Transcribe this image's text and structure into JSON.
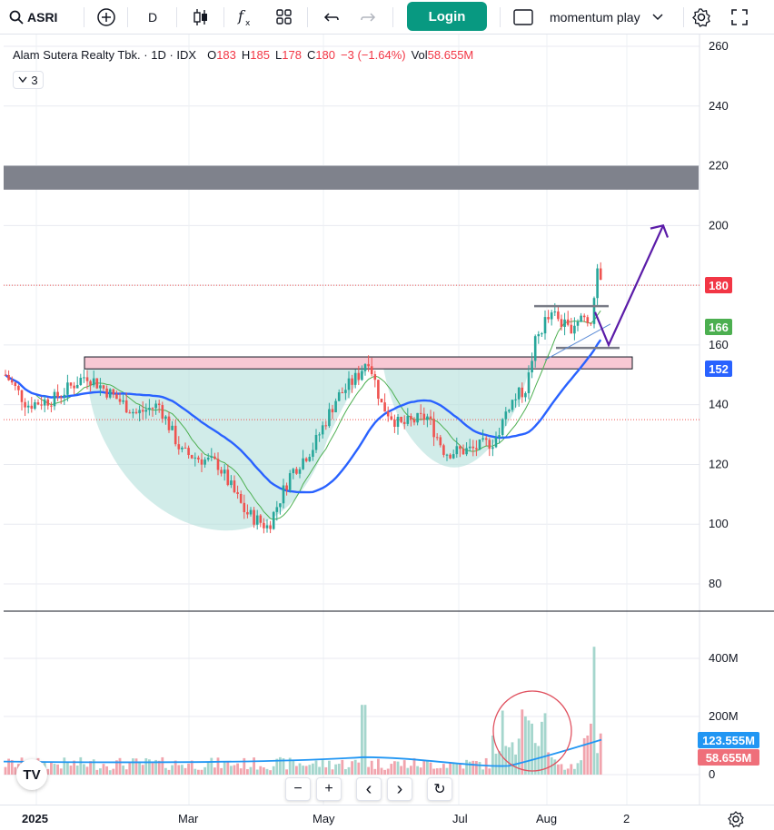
{
  "toolbar": {
    "symbol": "ASRI",
    "interval": "D",
    "login_label": "Login",
    "layout_name": "momentum play",
    "icons": [
      "search-icon",
      "add-symbol-icon",
      "bar-style-icon",
      "indicators-icon",
      "templates-icon",
      "undo-icon",
      "redo-icon",
      "layout-icon",
      "chevron-down-icon",
      "settings-icon",
      "fullscreen-icon"
    ]
  },
  "legend": {
    "name": "Alam Sutera Realty Tbk.",
    "interval": "1D",
    "exchange": "IDX",
    "open_label": "O",
    "open": "183",
    "high_label": "H",
    "high": "185",
    "low_label": "L",
    "low": "178",
    "close_label": "C",
    "close": "180",
    "change": "−3 (−1.64%)",
    "volume_label": "Vol",
    "volume": "58.655M",
    "indicator_count": "3"
  },
  "price_axis": {
    "labels": [
      "260",
      "240",
      "220",
      "200",
      "180",
      "160",
      "140",
      "120",
      "100",
      "80"
    ],
    "badges": [
      {
        "text": "180",
        "color": "#f23645"
      },
      {
        "text": "166",
        "color": "#4caf50"
      },
      {
        "text": "152",
        "color": "#2962ff"
      }
    ]
  },
  "volume_axis": {
    "labels": [
      "400M",
      "200M",
      "0"
    ],
    "badges": [
      {
        "text": "123.555M",
        "color": "#2196f3"
      },
      {
        "text": "58.655M",
        "color": "#ef6f7a"
      }
    ]
  },
  "time_axis": {
    "labels": [
      "2025",
      "Mar",
      "May",
      "Jul",
      "Aug",
      "2"
    ]
  },
  "zoom_controls": {
    "zoom_out": "−",
    "zoom_in": "+",
    "scroll_left": "‹",
    "scroll_right": "›",
    "reset": "↻"
  },
  "chart_data": {
    "type": "candlestick",
    "symbol": "ASRI",
    "ylim": [
      75,
      262
    ],
    "last_price": 180,
    "ma_fast_last": 166,
    "ma_slow_last": 152,
    "volume_ma_last": "123.555M",
    "last_volume": "58.655M",
    "resistance_zone": [
      212,
      220
    ],
    "support_zone": [
      152,
      156
    ],
    "target_arrow_price": 200,
    "colors": {
      "up": "#26a69a",
      "down": "#ef5350",
      "ma_fast": "#4caf50",
      "ma_slow": "#2962ff",
      "zone_fill": "#b2dfdb",
      "arrow": "#5b1ca8"
    }
  },
  "watermark": "TV"
}
